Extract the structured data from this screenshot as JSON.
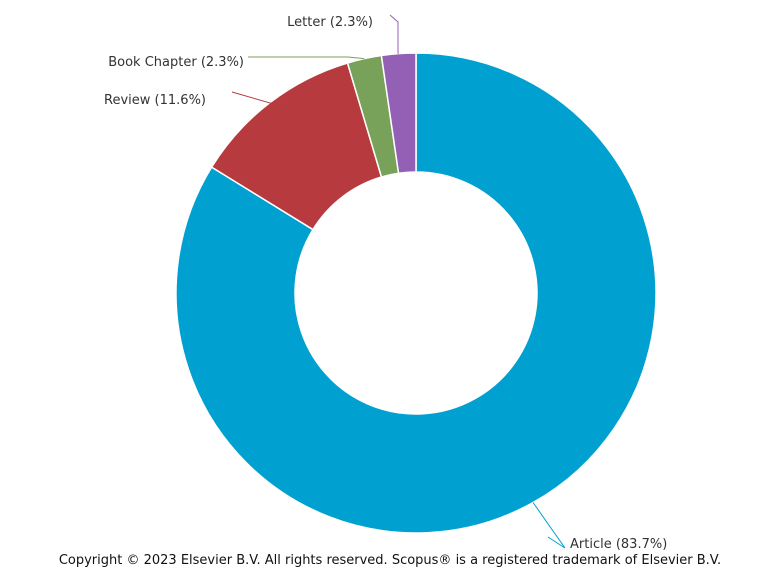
{
  "chart_data": {
    "type": "pie",
    "donut": true,
    "slices": [
      {
        "label": "Article",
        "value": 83.7,
        "display": "Article (83.7%)",
        "color": "#00a0d0"
      },
      {
        "label": "Review",
        "value": 11.6,
        "display": "Review (11.6%)",
        "color": "#b73a3f"
      },
      {
        "label": "Book Chapter",
        "value": 2.3,
        "display": "Book Chapter (2.3%)",
        "color": "#78a15a"
      },
      {
        "label": "Letter",
        "value": 2.3,
        "display": "Letter (2.3%)",
        "color": "#9360b5"
      }
    ]
  },
  "footer": {
    "copyright": "Copyright © 2023 Elsevier B.V. All rights reserved. Scopus® is a registered trademark of Elsevier B.V."
  }
}
